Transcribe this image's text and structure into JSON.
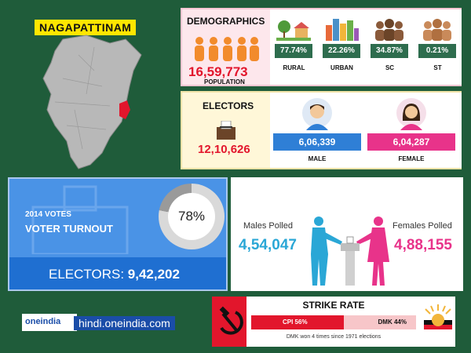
{
  "district": "NAGAPATTINAM",
  "demographics": {
    "title": "DEMOGRAPHICS",
    "population": "16,59,773",
    "population_label": "POPULATION",
    "stats": [
      {
        "value": "77.74%",
        "label": "RURAL",
        "icon": "tree-icon"
      },
      {
        "value": "22.26%",
        "label": "URBAN",
        "icon": "city-icon"
      },
      {
        "value": "34.87%",
        "label": "SC",
        "icon": "group-icon"
      },
      {
        "value": "0.21%",
        "label": "ST",
        "icon": "group-icon"
      }
    ]
  },
  "electors": {
    "title": "ELECTORS",
    "total": "12,10,626",
    "male": "6,06,339",
    "male_label": "MALE",
    "female": "6,04,287",
    "female_label": "FEMALE"
  },
  "turnout": {
    "year_label": "2014 VOTES",
    "title": "VOTER TURNOUT",
    "percent": "78%",
    "percent_value": 78,
    "electors_label": "ELECTORS:",
    "electors_value": "9,42,202"
  },
  "polled": {
    "male_label": "Males Polled",
    "male_value": "4,54,047",
    "female_label": "Females Polled",
    "female_value": "4,88,155"
  },
  "branding": {
    "logo_text": "oneindia",
    "url": "hindi.oneindia.com"
  },
  "strike_rate": {
    "title": "STRIKE RATE",
    "cpi_label": "CPI 56%",
    "cpi_share": 56,
    "dmk_label": "DMK 44%",
    "dmk_share": 44,
    "note": "DMK won 4 times since 1971 elections"
  },
  "colors": {
    "background": "#1f5c3a",
    "highlight": "#ffe600",
    "red": "#e2162c",
    "male_blue": "#2f7fd6",
    "female_pink": "#e8338a"
  }
}
